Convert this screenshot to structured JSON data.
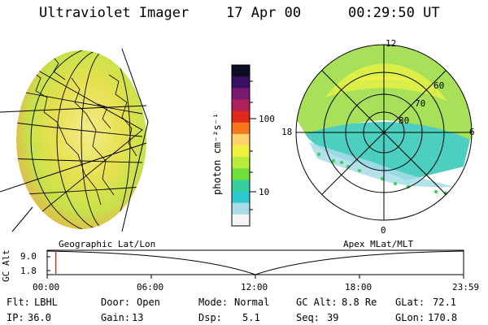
{
  "header": {
    "instrument": "Ultraviolet Imager",
    "date": "17 Apr 00",
    "time": "00:29:50 UT"
  },
  "colorbar": {
    "unit_label": "photon cm⁻²s⁻¹",
    "tick_labels": [
      "100",
      "10"
    ],
    "colors": [
      "#0b0b24",
      "#3a1060",
      "#7a1a70",
      "#b0205a",
      "#e0281c",
      "#f6781a",
      "#ffd26a",
      "#f0f040",
      "#b8ec3a",
      "#70de3a",
      "#38cfa0",
      "#30c8d0",
      "#a8dce8",
      "#f4f4f4"
    ]
  },
  "polar_plot": {
    "mlt_labels": {
      "top": "12",
      "left": "18",
      "right": "6",
      "bottom": "0"
    },
    "lat_labels": [
      "60",
      "70",
      "80"
    ]
  },
  "timeline": {
    "ylabel": "GC Alt",
    "yticks": [
      "9.0",
      "1.8"
    ],
    "left_caption": "Geographic Lat/Lon",
    "right_caption": "Apex MLat/MLT",
    "x_ticks": [
      "00:00",
      "06:00",
      "12:00",
      "18:00",
      "23:59"
    ],
    "current_marker_fraction": 0.0207
  },
  "info": {
    "rows": [
      [
        {
          "label": "Flt:",
          "value": "LBHL"
        },
        {
          "label": "Door:",
          "value": "Open"
        },
        {
          "label": "Mode:",
          "value": "Normal"
        },
        {
          "label": "GC Alt:",
          "value": "8.8 Re"
        },
        {
          "label": "GLat:",
          "value": "72.1"
        }
      ],
      [
        {
          "label": "IP:",
          "value": "36.0"
        },
        {
          "label": "Gain:",
          "value": "13"
        },
        {
          "label": "Dsp:",
          "value": "5.1"
        },
        {
          "label": "Seq:",
          "value": "39"
        },
        {
          "label": "GLon:",
          "value": "170.8"
        }
      ]
    ]
  },
  "colors": {
    "marker": "#c0392b",
    "globe_fill": "#e6dc5a",
    "polar_fill": "#a8e05a"
  }
}
